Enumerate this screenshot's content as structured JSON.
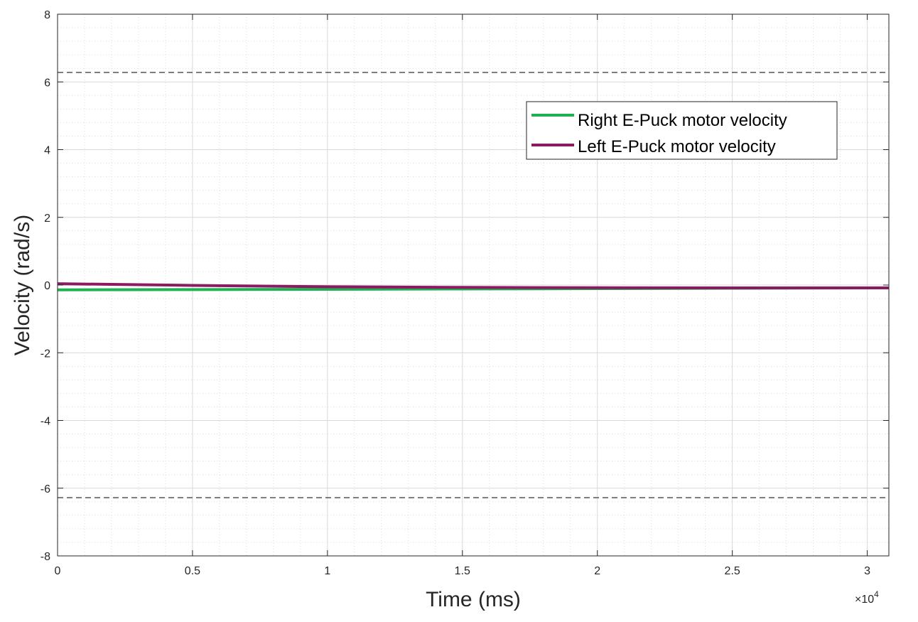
{
  "chart_data": {
    "type": "line",
    "xlabel": "Time (ms)",
    "ylabel": "Velocity (rad/s)",
    "xlim": [
      0,
      30800
    ],
    "ylim": [
      -8,
      8
    ],
    "x_tick_values": [
      0,
      5000,
      10000,
      15000,
      20000,
      25000,
      30000
    ],
    "x_tick_labels": [
      "0",
      "0.5",
      "1",
      "1.5",
      "2",
      "2.5",
      "3"
    ],
    "x_exponent": {
      "prefix": "×10",
      "power": "4"
    },
    "y_tick_values": [
      -8,
      -6,
      -4,
      -2,
      0,
      2,
      4,
      6,
      8
    ],
    "y_tick_labels": [
      "-8",
      "-6",
      "-4",
      "-2",
      "0",
      "2",
      "4",
      "6",
      "8"
    ],
    "grid": true,
    "minor_grid": true,
    "legend_position": "top-right",
    "reference_lines": [
      {
        "y": 6.28,
        "style": "dashed",
        "color": "#555555"
      },
      {
        "y": -6.28,
        "style": "dashed",
        "color": "#555555"
      }
    ],
    "series": [
      {
        "name": "Right E-Puck motor velocity",
        "color": "#1db151",
        "x": [
          0,
          5000,
          10000,
          15000,
          20000,
          25000,
          30800
        ],
        "y": [
          -0.14,
          -0.135,
          -0.125,
          -0.115,
          -0.105,
          -0.095,
          -0.085
        ]
      },
      {
        "name": "Left E-Puck motor velocity",
        "color": "#8b1a63",
        "x": [
          0,
          5000,
          10000,
          15000,
          20000,
          25000,
          30800
        ],
        "y": [
          0.04,
          -0.01,
          -0.05,
          -0.07,
          -0.08,
          -0.085,
          -0.085
        ]
      }
    ]
  }
}
